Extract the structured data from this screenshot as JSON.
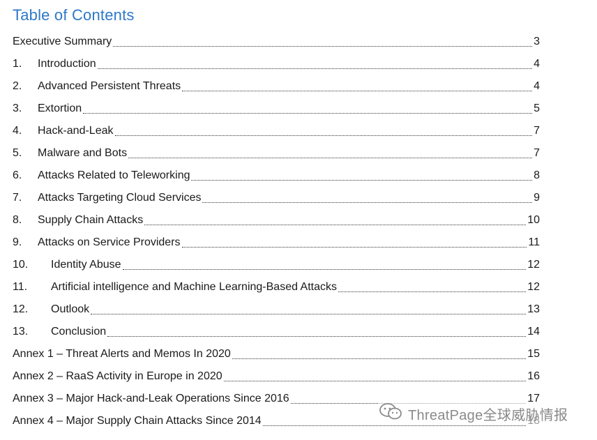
{
  "toc": {
    "title": "Table of Contents",
    "entries": [
      {
        "num": "",
        "label": "Executive Summary",
        "page": "3"
      },
      {
        "num": "1.",
        "label": "Introduction",
        "page": "4"
      },
      {
        "num": "2.",
        "label": "Advanced Persistent Threats",
        "page": "4"
      },
      {
        "num": "3.",
        "label": "Extortion",
        "page": "5"
      },
      {
        "num": "4.",
        "label": "Hack-and-Leak",
        "page": "7"
      },
      {
        "num": "5.",
        "label": "Malware and Bots",
        "page": "7"
      },
      {
        "num": "6.",
        "label": "Attacks Related to Teleworking",
        "page": "8"
      },
      {
        "num": "7.",
        "label": "Attacks Targeting Cloud Services",
        "page": "9"
      },
      {
        "num": "8.",
        "label": "Supply Chain Attacks",
        "page": "10"
      },
      {
        "num": "9.",
        "label": "Attacks on Service Providers",
        "page": "11"
      },
      {
        "num": "10.",
        "label": "Identity Abuse",
        "page": "12"
      },
      {
        "num": "11.",
        "label": "Artificial intelligence and Machine Learning-Based Attacks",
        "page": "12"
      },
      {
        "num": "12.",
        "label": "Outlook",
        "page": "13"
      },
      {
        "num": "13.",
        "label": "Conclusion",
        "page": "14"
      },
      {
        "num": "",
        "label": "Annex 1 – Threat Alerts and Memos In 2020",
        "page": "15"
      },
      {
        "num": "",
        "label": "Annex 2 – RaaS Activity in Europe in 2020",
        "page": "16"
      },
      {
        "num": "",
        "label": "Annex 3 – Major Hack-and-Leak Operations Since 2016",
        "page": "17"
      },
      {
        "num": "",
        "label": "Annex 4 – Major Supply Chain Attacks Since 2014",
        "page": "18"
      }
    ]
  },
  "watermark": {
    "text": "ThreatPage全球威胁情报",
    "icon": "wechat-icon"
  }
}
